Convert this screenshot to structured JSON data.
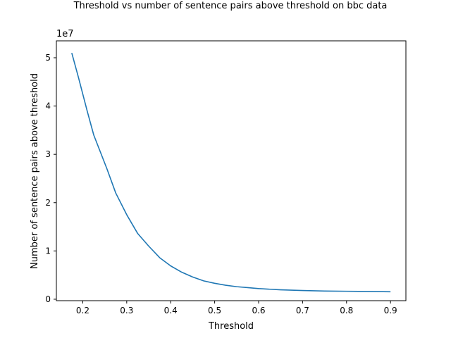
{
  "chart_data": {
    "type": "line",
    "title": "Threshold vs number of sentence pairs above threshold on bbc data",
    "xlabel": "Threshold",
    "ylabel": "Number of sentence pairs above threshold",
    "y_offset_label": "1e7",
    "xlim": [
      0.14,
      0.935
    ],
    "ylim": [
      -300000,
      53500000
    ],
    "x_ticks": [
      0.2,
      0.3,
      0.4,
      0.5,
      0.6,
      0.7,
      0.8,
      0.9
    ],
    "x_tick_labels": [
      "0.2",
      "0.3",
      "0.4",
      "0.5",
      "0.6",
      "0.7",
      "0.8",
      "0.9"
    ],
    "y_ticks": [
      0,
      10000000,
      20000000,
      30000000,
      40000000,
      50000000
    ],
    "y_tick_labels": [
      "0",
      "1",
      "2",
      "3",
      "4",
      "5"
    ],
    "grid": false,
    "color": "#1f77b4",
    "series": [
      {
        "x": [
          0.175,
          0.19,
          0.2,
          0.21,
          0.225,
          0.24,
          0.255,
          0.275,
          0.3,
          0.325,
          0.35,
          0.375,
          0.4,
          0.425,
          0.45,
          0.475,
          0.5,
          0.525,
          0.55,
          0.575,
          0.6,
          0.65,
          0.7,
          0.75,
          0.8,
          0.85,
          0.9
        ],
        "y": [
          51000000,
          46000000,
          42500000,
          39000000,
          34000000,
          30500000,
          27000000,
          22000000,
          17500000,
          13600000,
          11000000,
          8600000,
          6900000,
          5600000,
          4600000,
          3800000,
          3300000,
          2900000,
          2600000,
          2400000,
          2200000,
          1950000,
          1800000,
          1700000,
          1650000,
          1600000,
          1550000
        ]
      }
    ]
  }
}
